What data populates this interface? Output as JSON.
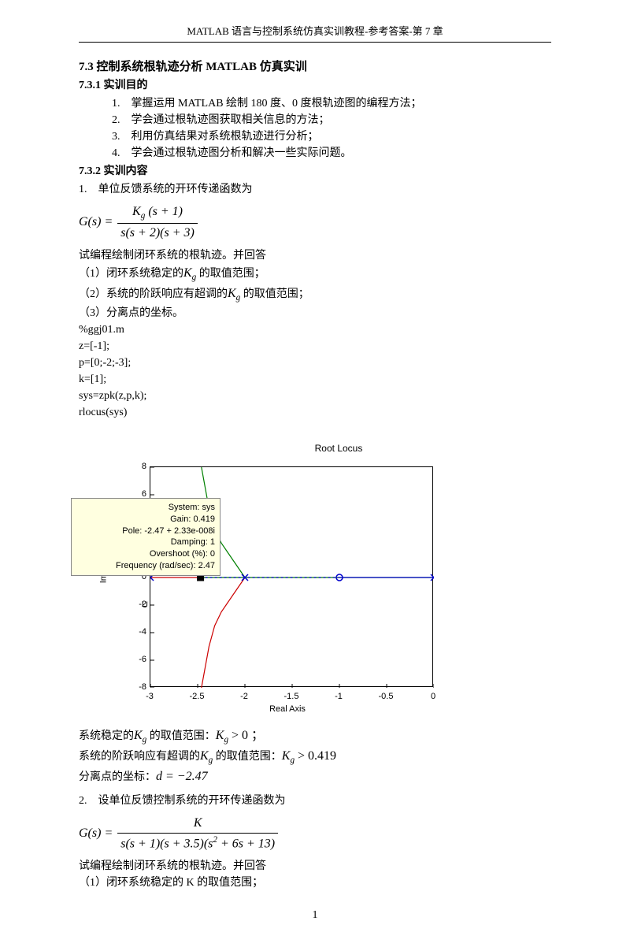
{
  "header": "MATLAB 语言与控制系统仿真实训教程-参考答案-第 7 章",
  "section_title": "7.3 控制系统根轨迹分析 MATLAB 仿真实训",
  "sub1_title": "7.3.1 实训目的",
  "objectives": [
    "1.　掌握运用 MATLAB 绘制 180 度、0 度根轨迹图的编程方法；",
    "2.　学会通过根轨迹图获取相关信息的方法；",
    "3.　利用仿真结果对系统根轨迹进行分析；",
    "4.　学会通过根轨迹图分析和解决一些实际问题。"
  ],
  "sub2_title": "7.3.2 实训内容",
  "q1_intro": "1.　单位反馈系统的开环传递函数为",
  "eq1_lhs": "G(s) = ",
  "eq1_num": "K<sub class=\"sub\">g</sub> (s + 1)",
  "eq1_den": "s(s + 2)(s + 3)",
  "q1_prompt": "试编程绘制闭环系统的根轨迹。并回答",
  "q1_items_a": "（1）闭环系统稳定的",
  "q1_items_a_tail": " 的取值范围；",
  "q1_items_b": "（2）系统的阶跃响应有超调的",
  "q1_items_b_tail": " 的取值范围；",
  "q1_items_c": "（3）分离点的坐标。",
  "Kg_it": "K",
  "Kg_sub": "g",
  "code_lines": [
    "%ggj01.m",
    "z=[-1];",
    "p=[0;-2;-3];",
    "k=[1];",
    "sys=zpk(z,p,k);",
    "rlocus(sys)"
  ],
  "chart": {
    "title": "Root Locus",
    "xlabel": "Real Axis",
    "ylabel": "Imaginary A",
    "ylabel_u": "U",
    "xlim": [
      -3,
      0
    ],
    "ylim": [
      -8,
      8
    ],
    "xticks": [
      -3,
      -2.5,
      -2,
      -1.5,
      -1,
      -0.5,
      0
    ],
    "yticks": [
      -8,
      -6,
      -4,
      -2,
      0,
      2,
      4,
      6,
      8
    ],
    "background": "#ffffff",
    "border_color": "#000000",
    "tooltip_bg": "#ffffe0",
    "tooltip_lines": [
      "System: sys",
      "Gain: 0.419",
      "Pole: -2.47 + 2.33e-008i",
      "Damping: 1",
      "Overshoot (%): 0",
      "Frequency (rad/sec): 2.47"
    ],
    "curves": {
      "green": {
        "color": "#008000",
        "points": [
          [
            -2,
            0
          ],
          [
            -2.05,
            0.5
          ],
          [
            -2.1,
            1
          ],
          [
            -2.18,
            1.8
          ],
          [
            -2.25,
            2.5
          ],
          [
            -2.32,
            3.5
          ],
          [
            -2.38,
            5
          ],
          [
            -2.42,
            6.5
          ],
          [
            -2.46,
            8
          ]
        ]
      },
      "red": {
        "color": "#cc0000",
        "points": [
          [
            -2,
            0
          ],
          [
            -2.05,
            -0.5
          ],
          [
            -2.1,
            -1
          ],
          [
            -2.18,
            -1.8
          ],
          [
            -2.25,
            -2.5
          ],
          [
            -2.32,
            -3.5
          ],
          [
            -2.38,
            -5
          ],
          [
            -2.42,
            -6.5
          ],
          [
            -2.46,
            -8
          ]
        ]
      },
      "blue_seg1": {
        "color": "#0000cc",
        "dash": "3,3",
        "points": [
          [
            -2.47,
            0
          ],
          [
            -1,
            0
          ]
        ]
      },
      "blue_seg2": {
        "color": "#0000cc",
        "points": [
          [
            -1,
            0
          ],
          [
            0,
            0
          ]
        ]
      },
      "orig_green": {
        "color": "#008000",
        "points": [
          [
            0,
            0
          ],
          [
            -2.47,
            0
          ]
        ]
      },
      "orig_red": {
        "color": "#cc0000",
        "points": [
          [
            -3,
            0
          ],
          [
            -2.47,
            0
          ]
        ]
      }
    },
    "poles": [
      [
        -3,
        0
      ],
      [
        -2,
        0
      ],
      [
        0,
        0
      ]
    ],
    "zeros": [
      [
        -1,
        0
      ]
    ],
    "square_marker": [
      -2.47,
      0
    ]
  },
  "ans1_a_pre": "系统稳定的",
  "ans1_a_mid": " 的取值范围：",
  "ans1_a_val": " > 0 ；",
  "ans1_b_pre": "系统的阶跃响应有超调的",
  "ans1_b_mid": " 的取值范围：",
  "ans1_b_val": " > 0.419",
  "ans1_c_pre": "分离点的坐标：",
  "ans1_c_val": "d = −2.47",
  "q2_intro": "2.　设单位反馈控制系统的开环传递函数为",
  "eq2_lhs": "G(s) = ",
  "eq2_num": "K",
  "eq2_den": "s(s + 1)(s + 3.5)(s<span class=\"sup\">2</span> + 6s + 13)",
  "q2_prompt": "试编程绘制闭环系统的根轨迹。并回答",
  "q2_item_a": "（1）闭环系统稳定的 K 的取值范围；",
  "page_number": "1"
}
